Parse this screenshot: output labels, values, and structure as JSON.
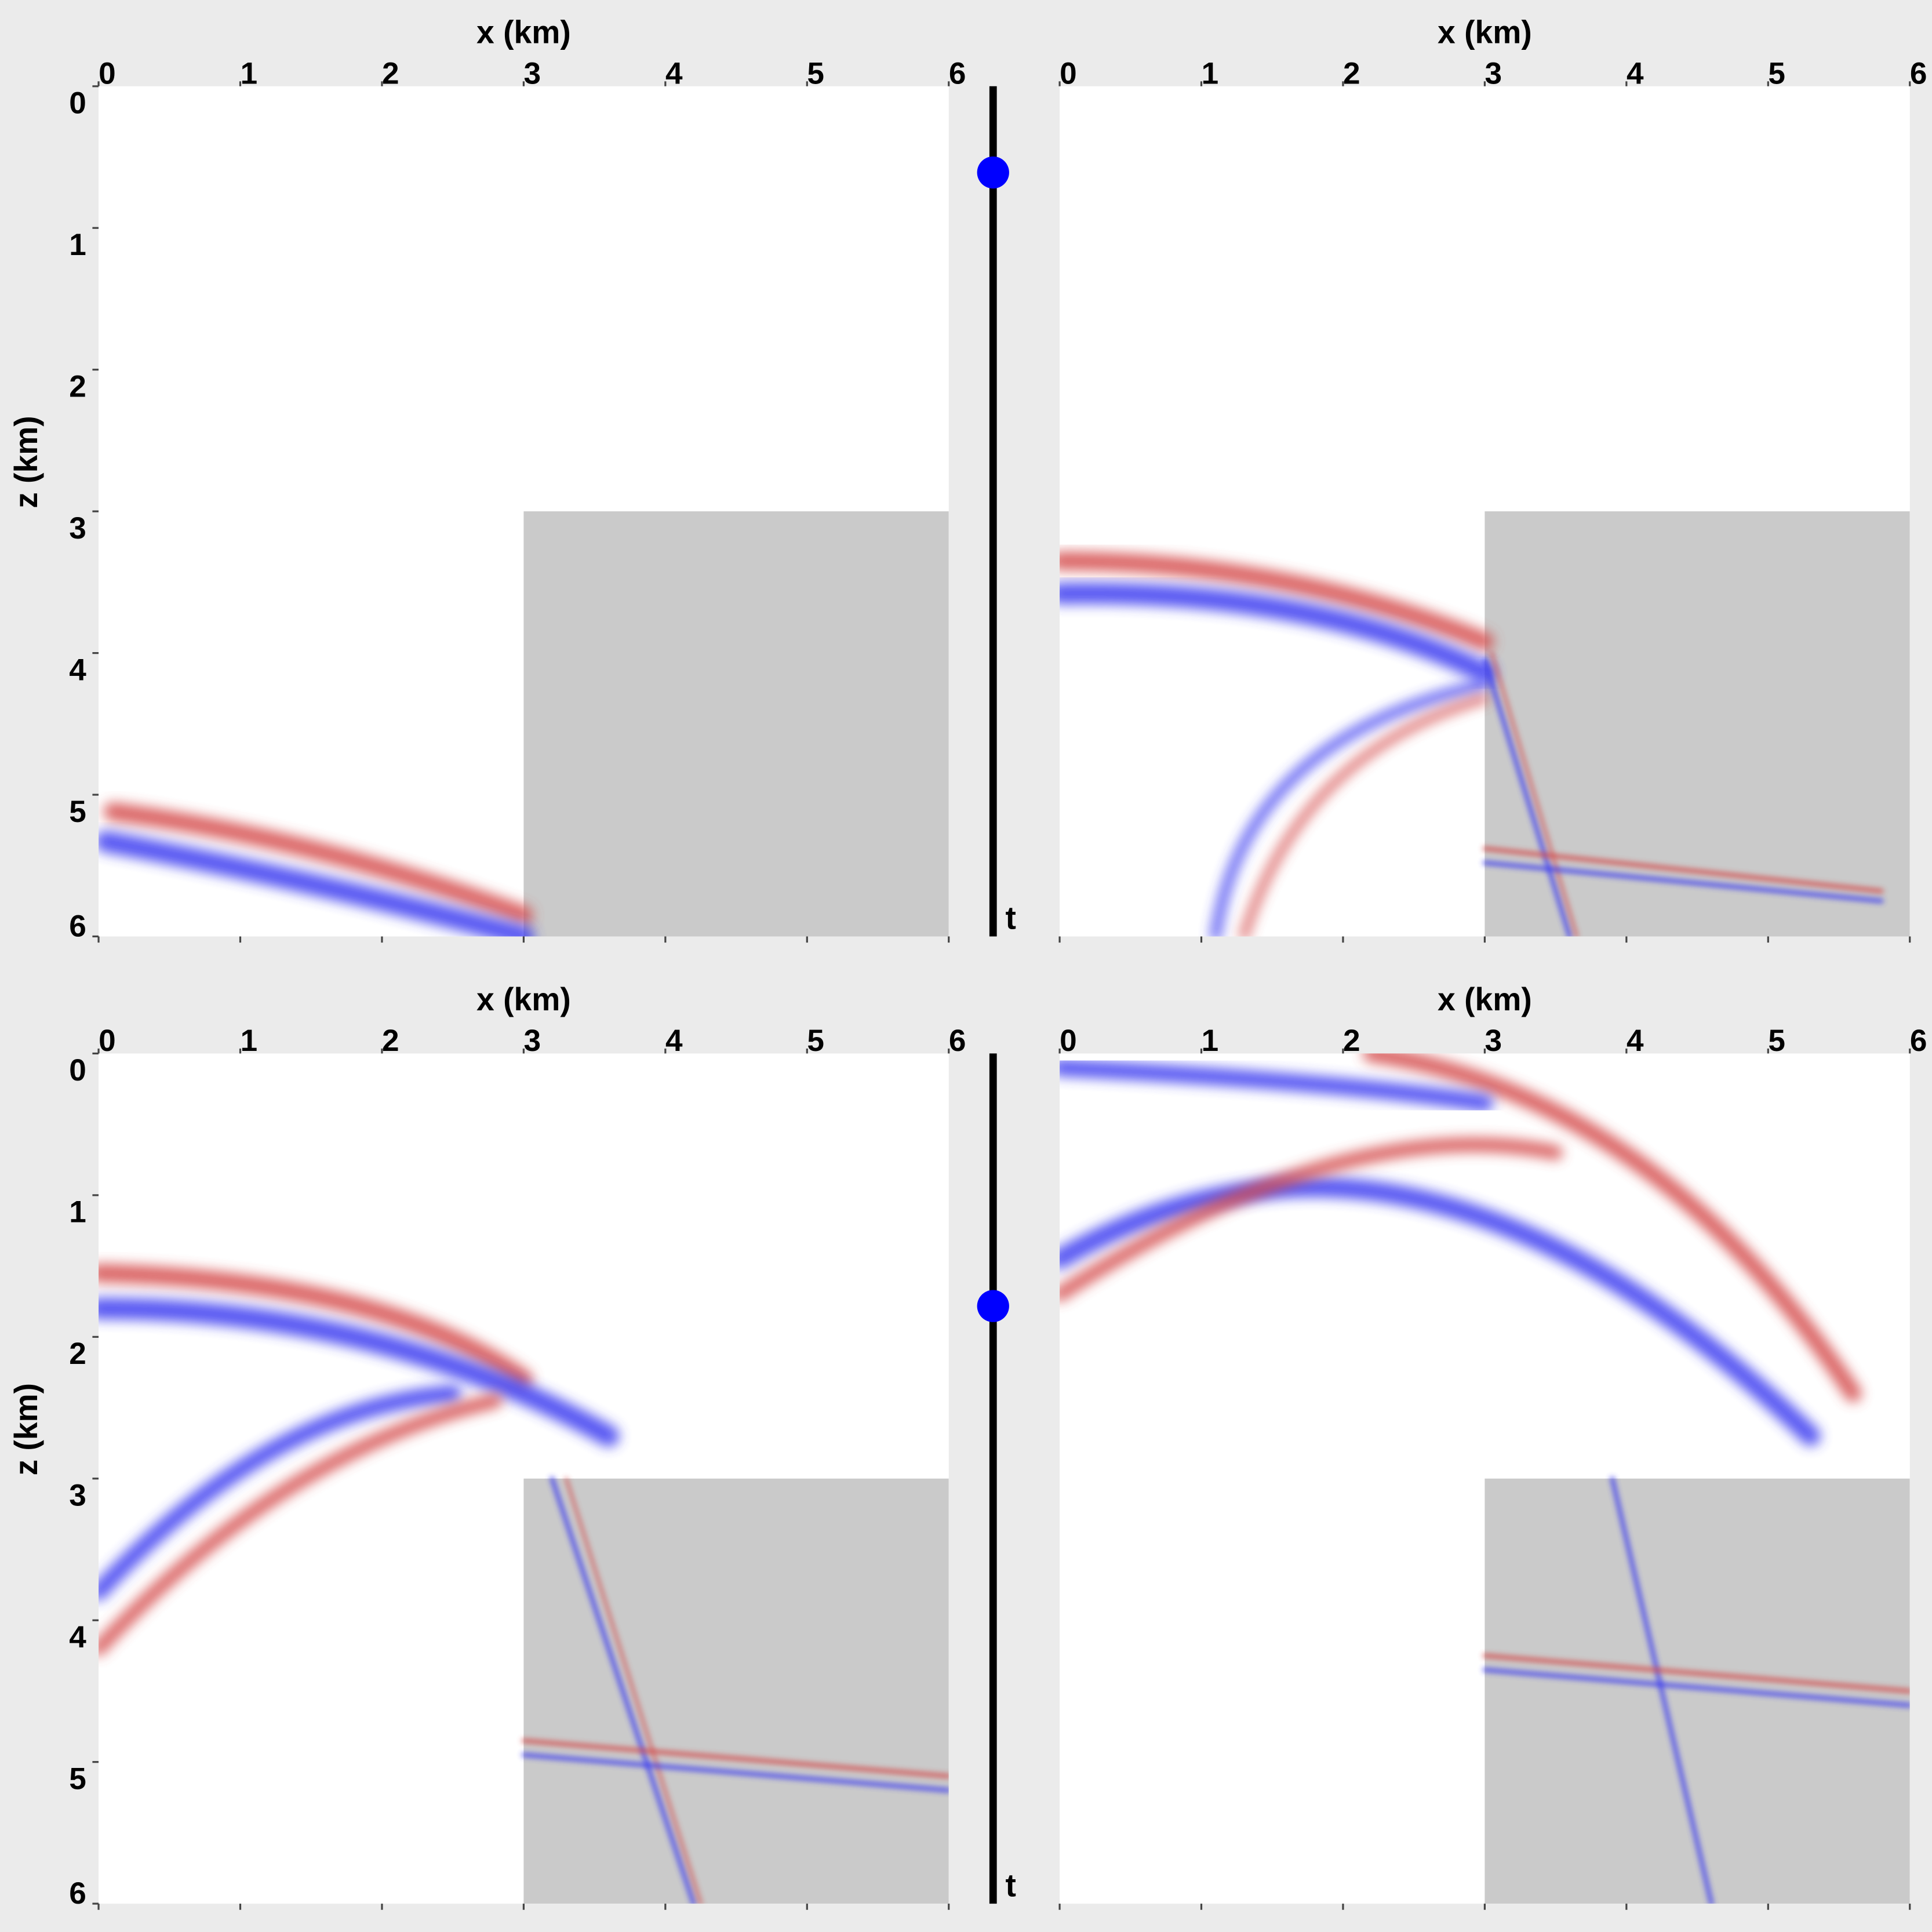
{
  "panels": [
    {
      "x_label": "x (km)",
      "z_label": "z (km)",
      "xticks": [
        0,
        1,
        2,
        3,
        4,
        5,
        6
      ],
      "zticks": [
        0,
        1,
        2,
        3,
        4,
        5,
        6
      ]
    },
    {
      "x_label": "x (km)",
      "xticks": [
        0,
        1,
        2,
        3,
        4,
        5,
        6
      ]
    },
    {
      "x_label": "x (km)",
      "z_label": "z (km)",
      "xticks": [
        0,
        1,
        2,
        3,
        4,
        5,
        6
      ],
      "zticks": [
        0,
        1,
        2,
        3,
        4,
        5,
        6
      ]
    },
    {
      "x_label": "x (km)",
      "xticks": [
        0,
        1,
        2,
        3,
        4,
        5,
        6
      ]
    }
  ],
  "time_bars": [
    {
      "label": "t"
    },
    {
      "label": "t"
    }
  ]
}
